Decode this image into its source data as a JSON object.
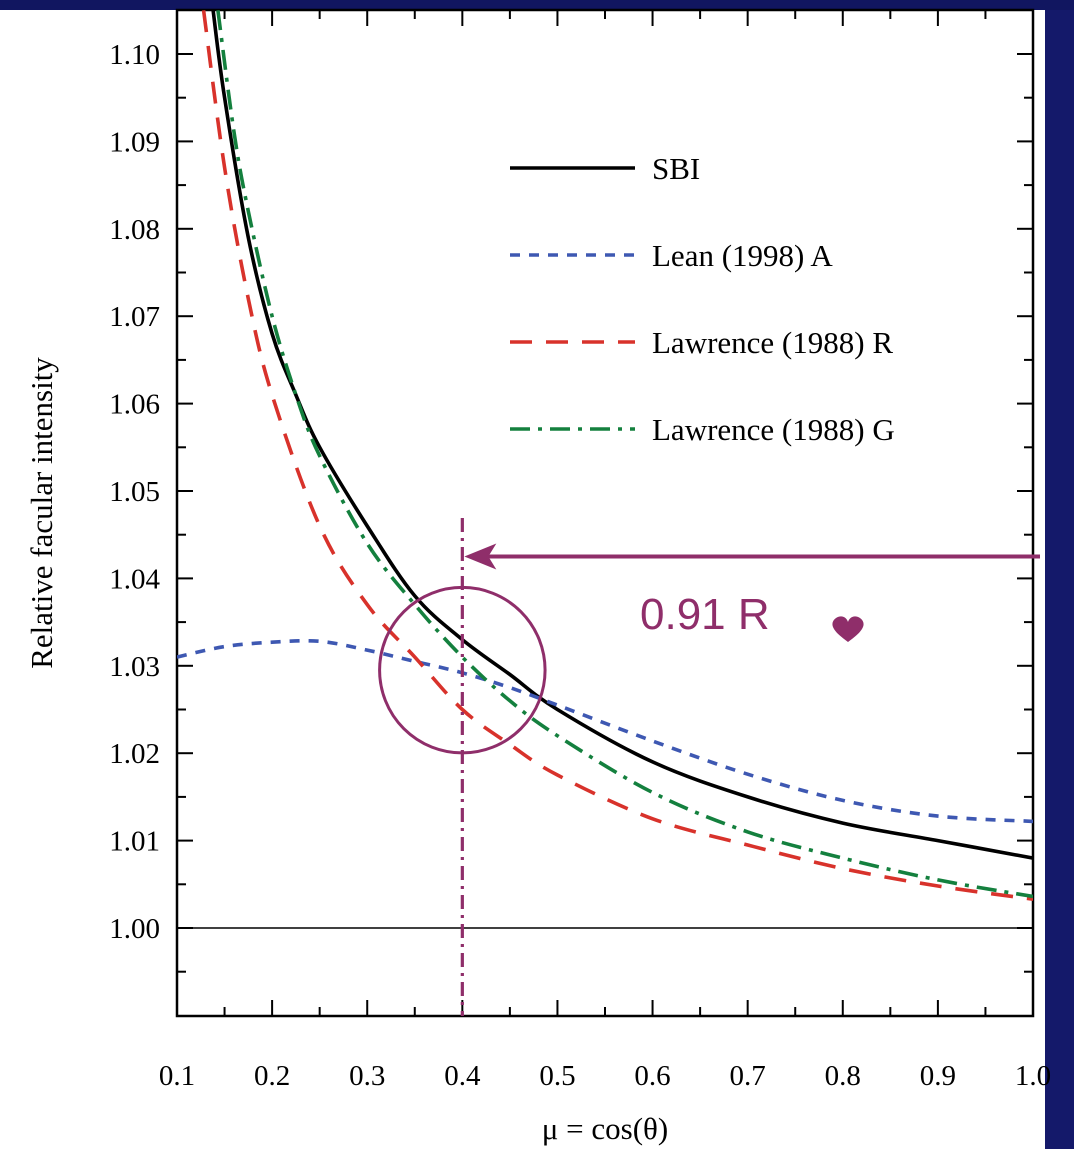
{
  "colors": {
    "slide_background": "#14196a",
    "plot_background": "#ffffff",
    "annotation": "#8f2e6a"
  },
  "chart_data": {
    "type": "line",
    "title": "",
    "xlabel": "μ = cos(θ)",
    "ylabel": "Relative facular intensity",
    "xlim": [
      0.1,
      1.0
    ],
    "ylim": [
      0.99,
      1.105
    ],
    "x_ticks": [
      0.1,
      0.2,
      0.3,
      0.4,
      0.5,
      0.6,
      0.7,
      0.8,
      0.9,
      1.0
    ],
    "x_tick_labels": [
      "0.1",
      "0.2",
      "0.3",
      "0.4",
      "0.5",
      "0.6",
      "0.7",
      "0.8",
      "0.9",
      "1.0"
    ],
    "y_ticks": [
      1.0,
      1.01,
      1.02,
      1.03,
      1.04,
      1.05,
      1.06,
      1.07,
      1.08,
      1.09,
      1.1
    ],
    "y_tick_labels": [
      "1.00",
      "1.01",
      "1.02",
      "1.03",
      "1.04",
      "1.05",
      "1.06",
      "1.07",
      "1.08",
      "1.09",
      "1.10"
    ],
    "grid": false,
    "legend_position": "top-right",
    "reference_line_y": 1.0,
    "series": [
      {
        "name": "SBI",
        "color": "#000000",
        "dash": "solid",
        "x": [
          0.138,
          0.15,
          0.175,
          0.2,
          0.225,
          0.25,
          0.3,
          0.35,
          0.4,
          0.45,
          0.5,
          0.6,
          0.7,
          0.8,
          0.9,
          1.0
        ],
        "y": [
          1.105,
          1.095,
          1.079,
          1.068,
          1.061,
          1.055,
          1.046,
          1.038,
          1.033,
          1.029,
          1.025,
          1.019,
          1.015,
          1.012,
          1.01,
          1.008
        ]
      },
      {
        "name": "Lean (1998) A",
        "color": "#3e58b2",
        "dash": "dotted",
        "x": [
          0.1,
          0.15,
          0.2,
          0.25,
          0.3,
          0.35,
          0.4,
          0.45,
          0.5,
          0.6,
          0.7,
          0.8,
          0.9,
          1.0
        ],
        "y": [
          1.031,
          1.0322,
          1.0327,
          1.0328,
          1.0318,
          1.0305,
          1.0292,
          1.0275,
          1.0255,
          1.0214,
          1.0176,
          1.0146,
          1.0128,
          1.0122
        ]
      },
      {
        "name": "Lawrence (1988) R",
        "color": "#d8322b",
        "dash": "dashed",
        "x": [
          0.128,
          0.15,
          0.175,
          0.2,
          0.25,
          0.3,
          0.35,
          0.4,
          0.45,
          0.5,
          0.6,
          0.7,
          0.8,
          0.9,
          1.0
        ],
        "y": [
          1.105,
          1.087,
          1.072,
          1.061,
          1.046,
          1.037,
          1.031,
          1.025,
          1.021,
          1.0175,
          1.0125,
          1.0095,
          1.0068,
          1.0048,
          1.0033
        ]
      },
      {
        "name": "Lawrence (1988) G",
        "color": "#14803e",
        "dash": "dash-dot",
        "x": [
          0.143,
          0.16,
          0.175,
          0.2,
          0.225,
          0.25,
          0.3,
          0.35,
          0.4,
          0.45,
          0.5,
          0.6,
          0.7,
          0.8,
          0.9,
          1.0
        ],
        "y": [
          1.105,
          1.091,
          1.082,
          1.07,
          1.061,
          1.054,
          1.044,
          1.037,
          1.031,
          1.026,
          1.022,
          1.0155,
          1.011,
          1.008,
          1.0055,
          1.0036
        ]
      }
    ],
    "annotations": {
      "vertical_line_x": 0.4,
      "circle_center": [
        0.4,
        1.0295
      ],
      "circle_radius_x": 0.087,
      "arrow_from_x": 1.0,
      "arrow_to_x": 0.4,
      "arrow_y": 1.0425,
      "label": "0.91 R",
      "label_symbol": "heart"
    }
  }
}
